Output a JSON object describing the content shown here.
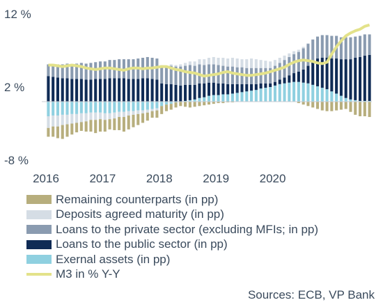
{
  "chart_data": {
    "type": "bar",
    "stacked": true,
    "x_start": "2016-01",
    "x_end": "2020-12",
    "frequency": "monthly",
    "x_tick_labels": [
      "2016",
      "2017",
      "2018",
      "2019",
      "2020"
    ],
    "y_tick_labels": [
      "12 %",
      "2 %",
      "-8 %"
    ],
    "ylim": [
      -8,
      12
    ],
    "legend_position": "bottom-left",
    "source": "Sources: ECB, VP Bank",
    "series": [
      {
        "name": "Remaining counterparts (in pp)",
        "color": "#b7ae7d",
        "values": [
          -1.2,
          -1.4,
          -1.6,
          -1.9,
          -1.7,
          -1.5,
          -1.3,
          -1.2,
          -1.4,
          -1.6,
          -1.8,
          -1.7,
          -1.6,
          -1.4,
          -1.6,
          -1.8,
          -2.0,
          -1.9,
          -1.7,
          -1.5,
          -1.3,
          -1.1,
          -0.9,
          -1.0,
          -1.1,
          -0.9,
          -0.8,
          -0.7,
          -0.6,
          -0.7,
          -0.8,
          -0.7,
          -0.6,
          -0.5,
          -0.4,
          -0.3,
          -0.2,
          -0.2,
          -0.1,
          -0.1,
          0,
          0,
          0,
          0,
          0,
          0,
          0,
          0,
          0,
          0,
          0,
          0,
          0,
          -0.2,
          -0.4,
          -0.6,
          -0.8,
          -1.0,
          -1.2,
          -1.3,
          -1.3,
          -1.2,
          -1.1,
          -1.0,
          -1.4,
          -1.8,
          -2.0,
          -2.0,
          -2.1
        ]
      },
      {
        "name": "Deposits agreed maturity (in pp)",
        "color": "#d5dde5",
        "values": [
          -1.6,
          -1.5,
          -1.5,
          -1.4,
          -1.3,
          -1.3,
          -1.2,
          -1.2,
          -1.1,
          -1.0,
          -1.0,
          -0.9,
          -0.9,
          -0.8,
          -0.8,
          -0.7,
          -0.7,
          -0.6,
          -0.5,
          -0.5,
          -0.4,
          -0.4,
          -0.3,
          -0.3,
          0.1,
          0.1,
          0.2,
          0.2,
          0.3,
          0.4,
          0.5,
          0.6,
          0.7,
          0.8,
          0.9,
          1.0,
          1.0,
          1.1,
          1.1,
          1.2,
          1.2,
          1.1,
          1.2,
          1.3,
          1.2,
          1.1,
          1.0,
          0.9,
          0.8,
          0.7,
          0.6,
          0.5,
          0.4,
          0.3,
          0.2,
          0.1,
          0,
          0,
          0,
          0,
          0,
          0,
          0,
          0,
          0,
          0,
          0,
          0,
          0
        ]
      },
      {
        "name": "Loans to the private sector (excluding MFIs; in  pp)",
        "color": "#8a9bb0",
        "values": [
          1.6,
          1.7,
          1.8,
          1.9,
          2.0,
          2.0,
          2.1,
          2.2,
          2.2,
          2.3,
          2.3,
          2.4,
          2.4,
          2.5,
          2.5,
          2.6,
          2.6,
          2.7,
          2.7,
          2.8,
          2.8,
          2.9,
          2.9,
          2.9,
          2.4,
          2.4,
          2.5,
          2.5,
          2.6,
          2.6,
          2.7,
          2.6,
          2.6,
          2.5,
          2.5,
          2.5,
          2.5,
          2.4,
          2.4,
          2.4,
          2.3,
          2.3,
          2.2,
          2.2,
          2.2,
          2.1,
          2.1,
          2.1,
          2.2,
          2.3,
          2.4,
          2.5,
          2.6,
          2.7,
          2.9,
          3.0,
          3.0,
          3.0,
          3.1,
          3.1,
          3.1,
          3.1,
          3.0,
          3.0,
          3.0,
          2.9,
          2.9,
          2.9,
          2.8
        ]
      },
      {
        "name": "Loans to the public sector (in pp)",
        "color": "#0f2b55",
        "values": [
          3.5,
          3.4,
          3.3,
          3.2,
          3.2,
          3.1,
          3.1,
          3.1,
          3.0,
          3.0,
          3.1,
          3.1,
          3.1,
          3.2,
          3.2,
          3.2,
          3.2,
          3.1,
          3.1,
          3.1,
          3.2,
          3.2,
          3.1,
          3.0,
          2.5,
          2.4,
          2.4,
          2.3,
          2.2,
          2.2,
          2.1,
          2.0,
          2.0,
          1.9,
          1.8,
          1.7,
          1.6,
          1.5,
          1.4,
          1.3,
          1.2,
          1.1,
          1.0,
          0.9,
          0.8,
          0.7,
          0.6,
          0.5,
          0.5,
          0.6,
          0.8,
          1.0,
          1.2,
          1.4,
          1.8,
          2.4,
          3.2,
          3.8,
          4.1,
          4.3,
          4.5,
          4.8,
          5.0,
          5.3,
          5.5,
          5.8,
          6.0,
          6.2,
          6.3
        ]
      },
      {
        "name": "Exernal assets (in pp)",
        "color": "#8fd0e0",
        "values": [
          -2.0,
          -1.9,
          -1.9,
          -1.8,
          -1.8,
          -1.7,
          -1.7,
          -1.6,
          -1.6,
          -1.5,
          -1.5,
          -1.5,
          -1.6,
          -1.6,
          -1.5,
          -1.4,
          -1.4,
          -1.3,
          -1.3,
          -1.2,
          -1.2,
          -1.1,
          -1.0,
          -0.9,
          -0.6,
          -0.4,
          -0.3,
          -0.1,
          0,
          0.1,
          0.2,
          0.3,
          0.5,
          0.6,
          0.8,
          0.9,
          0.9,
          1.0,
          1.0,
          1.1,
          1.2,
          1.3,
          1.4,
          1.5,
          1.6,
          1.8,
          1.9,
          2.0,
          2.2,
          2.4,
          2.5,
          2.6,
          2.7,
          2.7,
          2.6,
          2.5,
          2.3,
          2.1,
          1.9,
          1.7,
          1.4,
          1.1,
          0.8,
          0.5,
          0.3,
          0.2,
          0.1,
          0.1,
          0.1
        ]
      },
      {
        "name": "M3 in % Y-Y",
        "type": "line",
        "color": "#e3e28a",
        "values": [
          5.0,
          5.0,
          4.9,
          4.8,
          4.9,
          5.0,
          4.9,
          4.8,
          4.6,
          4.5,
          4.4,
          4.5,
          4.6,
          4.6,
          4.5,
          4.4,
          4.3,
          4.5,
          4.6,
          4.6,
          4.5,
          4.6,
          4.6,
          4.7,
          4.8,
          4.8,
          4.6,
          4.4,
          4.3,
          4.1,
          4.0,
          3.9,
          3.7,
          3.5,
          3.6,
          3.7,
          3.8,
          4.0,
          4.1,
          3.9,
          3.8,
          3.7,
          3.6,
          3.6,
          3.7,
          3.8,
          3.9,
          4.1,
          4.3,
          4.5,
          4.7,
          5.1,
          5.4,
          5.6,
          5.7,
          5.6,
          5.5,
          5.3,
          5.2,
          5.4,
          6.5,
          7.5,
          8.3,
          9.0,
          9.4,
          9.7,
          9.9,
          10.3,
          10.5
        ]
      }
    ]
  }
}
